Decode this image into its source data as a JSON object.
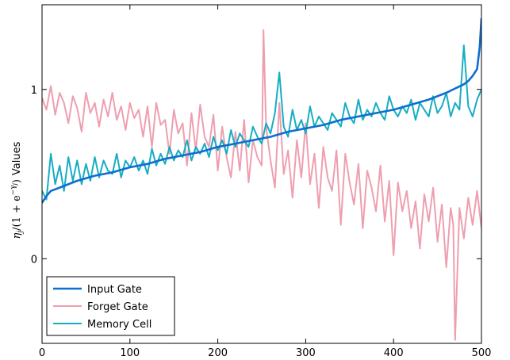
{
  "chart_data": {
    "type": "line",
    "title": "",
    "xlabel": "",
    "ylabel": {
      "math": {
        "eta": "η",
        "sub": "j",
        "rest": "/(1 + e",
        "exp": "−γ",
        "expsub": "j",
        "close": ")"
      },
      "suffix": "Values"
    },
    "xlim": [
      0,
      500
    ],
    "ylim": [
      -0.5,
      1.5
    ],
    "x_ticks": [
      0,
      100,
      200,
      300,
      400,
      500
    ],
    "y_ticks": [
      0,
      1
    ],
    "grid": false,
    "legend_position": "lower-left",
    "series": [
      {
        "name": "Input Gate",
        "color": "#0c6fcf",
        "stroke_width": 2.6,
        "x": [
          0,
          5,
          10,
          20,
          40,
          60,
          80,
          100,
          120,
          140,
          160,
          180,
          200,
          220,
          240,
          260,
          280,
          300,
          320,
          340,
          360,
          380,
          400,
          420,
          440,
          460,
          480,
          485,
          490,
          495,
          498,
          500
        ],
        "y": [
          0.33,
          0.37,
          0.4,
          0.42,
          0.46,
          0.49,
          0.51,
          0.54,
          0.56,
          0.59,
          0.61,
          0.63,
          0.66,
          0.68,
          0.7,
          0.72,
          0.75,
          0.77,
          0.79,
          0.82,
          0.84,
          0.86,
          0.88,
          0.91,
          0.94,
          0.98,
          1.03,
          1.05,
          1.08,
          1.12,
          1.25,
          1.42
        ]
      },
      {
        "name": "Forget Gate",
        "color": "#ee9faf",
        "stroke_width": 2.0,
        "x": [
          0,
          5,
          10,
          15,
          20,
          25,
          30,
          35,
          40,
          45,
          50,
          55,
          60,
          65,
          70,
          75,
          80,
          85,
          90,
          95,
          100,
          105,
          110,
          115,
          120,
          125,
          130,
          135,
          140,
          145,
          150,
          155,
          160,
          165,
          170,
          175,
          180,
          185,
          190,
          195,
          200,
          205,
          210,
          215,
          220,
          225,
          230,
          235,
          240,
          245,
          250,
          252,
          255,
          260,
          265,
          270,
          275,
          280,
          285,
          290,
          295,
          300,
          305,
          310,
          315,
          320,
          325,
          330,
          335,
          340,
          345,
          350,
          355,
          360,
          365,
          370,
          375,
          380,
          385,
          390,
          395,
          400,
          405,
          410,
          415,
          420,
          425,
          430,
          435,
          440,
          445,
          450,
          455,
          460,
          465,
          468,
          470,
          475,
          480,
          485,
          490,
          495,
          500
        ],
        "y": [
          0.95,
          0.88,
          1.02,
          0.85,
          0.98,
          0.92,
          0.8,
          0.96,
          0.89,
          0.75,
          0.98,
          0.86,
          0.92,
          0.78,
          0.94,
          0.84,
          0.98,
          0.82,
          0.9,
          0.76,
          0.92,
          0.83,
          0.88,
          0.72,
          0.9,
          0.66,
          0.92,
          0.79,
          0.82,
          0.62,
          0.88,
          0.74,
          0.8,
          0.55,
          0.86,
          0.64,
          0.91,
          0.72,
          0.66,
          0.85,
          0.52,
          0.78,
          0.6,
          0.48,
          0.75,
          0.52,
          0.82,
          0.45,
          0.7,
          0.6,
          0.55,
          1.35,
          0.78,
          0.58,
          0.42,
          0.92,
          0.5,
          0.64,
          0.36,
          0.7,
          0.48,
          0.8,
          0.44,
          0.62,
          0.3,
          0.66,
          0.48,
          0.4,
          0.64,
          0.2,
          0.62,
          0.45,
          0.32,
          0.56,
          0.18,
          0.52,
          0.42,
          0.28,
          0.55,
          0.22,
          0.46,
          0.02,
          0.45,
          0.28,
          0.4,
          0.18,
          0.34,
          0.06,
          0.38,
          0.22,
          0.42,
          0.1,
          0.32,
          -0.05,
          0.3,
          0.2,
          -0.48,
          0.3,
          0.12,
          0.36,
          0.2,
          0.4,
          0.18
        ]
      },
      {
        "name": "Memory Cell",
        "color": "#17adc3",
        "stroke_width": 2.0,
        "x": [
          0,
          5,
          10,
          15,
          20,
          25,
          30,
          35,
          40,
          45,
          50,
          55,
          60,
          65,
          70,
          75,
          80,
          85,
          90,
          95,
          100,
          105,
          110,
          115,
          120,
          125,
          130,
          135,
          140,
          145,
          150,
          155,
          160,
          165,
          170,
          175,
          180,
          185,
          190,
          195,
          200,
          205,
          210,
          215,
          220,
          225,
          230,
          235,
          240,
          245,
          250,
          255,
          260,
          265,
          270,
          275,
          280,
          285,
          290,
          295,
          300,
          305,
          310,
          315,
          320,
          325,
          330,
          335,
          340,
          345,
          350,
          355,
          360,
          365,
          370,
          375,
          380,
          385,
          390,
          395,
          400,
          405,
          410,
          415,
          420,
          425,
          430,
          435,
          440,
          445,
          450,
          455,
          460,
          465,
          470,
          475,
          480,
          485,
          490,
          495,
          500
        ],
        "y": [
          0.4,
          0.35,
          0.62,
          0.44,
          0.55,
          0.4,
          0.6,
          0.46,
          0.58,
          0.44,
          0.56,
          0.46,
          0.6,
          0.48,
          0.58,
          0.52,
          0.5,
          0.62,
          0.48,
          0.58,
          0.54,
          0.6,
          0.52,
          0.58,
          0.5,
          0.65,
          0.55,
          0.62,
          0.56,
          0.66,
          0.58,
          0.64,
          0.6,
          0.7,
          0.58,
          0.66,
          0.62,
          0.68,
          0.6,
          0.72,
          0.64,
          0.7,
          0.62,
          0.76,
          0.66,
          0.74,
          0.7,
          0.66,
          0.78,
          0.72,
          0.68,
          0.8,
          0.74,
          0.86,
          1.1,
          0.78,
          0.72,
          0.88,
          0.76,
          0.82,
          0.74,
          0.9,
          0.78,
          0.84,
          0.8,
          0.76,
          0.86,
          0.82,
          0.78,
          0.92,
          0.84,
          0.8,
          0.94,
          0.82,
          0.88,
          0.84,
          0.92,
          0.86,
          0.82,
          0.96,
          0.88,
          0.84,
          0.9,
          0.86,
          0.94,
          0.82,
          0.92,
          0.88,
          0.84,
          0.96,
          0.86,
          0.9,
          0.98,
          0.84,
          0.92,
          0.88,
          1.26,
          0.9,
          0.84,
          0.94,
          1.0
        ]
      }
    ]
  }
}
